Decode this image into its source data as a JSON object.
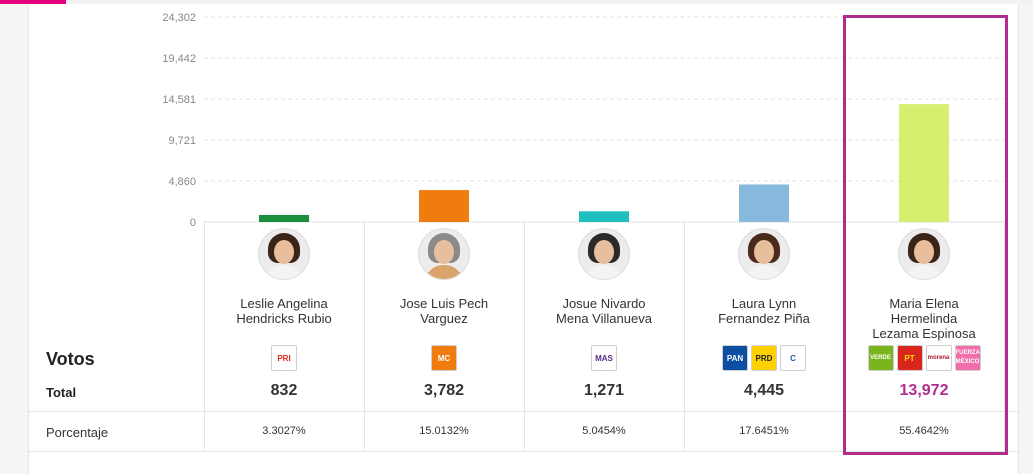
{
  "chart_data": {
    "type": "bar",
    "categories": [
      "Leslie Angelina Hendricks Rubio",
      "Jose Luis Pech Varguez",
      "Josue Nivardo Mena Villanueva",
      "Laura Lynn Fernandez Piña",
      "Maria Elena Hermelinda Lezama Espinosa"
    ],
    "values": [
      832,
      3782,
      1271,
      4445,
      13972
    ],
    "ylim": [
      0,
      24302
    ],
    "yticks": [
      0,
      4860,
      9721,
      14581,
      19442,
      24302
    ],
    "ytick_labels": [
      "0",
      "4,860",
      "9,721",
      "14,581",
      "19,442",
      "24,302"
    ],
    "grid": true,
    "highlighted_index": 4,
    "colors": [
      "#1a8f3c",
      "#f07b0e",
      "#1fbfbf",
      "#86b9dc",
      "#d6ef6e"
    ]
  },
  "table": {
    "title": "Votos",
    "total_label": "Total",
    "percentage_label": "Porcentaje",
    "winner_total_color": "#b02d8e",
    "candidates": [
      {
        "name_lines": [
          "Leslie Angelina",
          "Hendricks Rubio"
        ],
        "total": "832",
        "percentage": "3.3027%",
        "avatar": {
          "hair": "#3b2418",
          "clothes": "#f4f4f4"
        },
        "parties": [
          {
            "icon": "pri-logo",
            "label": "PRI",
            "bg": "#ffffff",
            "fg": "#e0251b"
          }
        ]
      },
      {
        "name_lines": [
          "Jose Luis Pech",
          "Varguez"
        ],
        "total": "3,782",
        "percentage": "15.0132%",
        "avatar": {
          "hair": "#8a8a8a",
          "clothes": "#d9a56a"
        },
        "parties": [
          {
            "icon": "mc-logo",
            "label": "MC",
            "bg": "#f07b0e",
            "fg": "#ffffff"
          }
        ]
      },
      {
        "name_lines": [
          "Josue Nivardo",
          "Mena Villanueva"
        ],
        "total": "1,271",
        "percentage": "5.0454%",
        "avatar": {
          "hair": "#2a2a2a",
          "clothes": "#f4f4f4"
        },
        "parties": [
          {
            "icon": "mas-logo",
            "label": "MAS",
            "bg": "#ffffff",
            "fg": "#5a2d82"
          }
        ]
      },
      {
        "name_lines": [
          "Laura Lynn",
          "Fernandez Piña"
        ],
        "total": "4,445",
        "percentage": "17.6451%",
        "avatar": {
          "hair": "#4a2a1a",
          "clothes": "#f4f4f4"
        },
        "parties": [
          {
            "icon": "pan-logo",
            "label": "PAN",
            "bg": "#0b4ea2",
            "fg": "#ffffff"
          },
          {
            "icon": "prd-logo",
            "label": "PRD",
            "bg": "#ffd100",
            "fg": "#222222"
          },
          {
            "icon": "confianza-logo",
            "label": "C",
            "bg": "#ffffff",
            "fg": "#1a5aa8"
          }
        ]
      },
      {
        "name_lines": [
          "Maria Elena",
          "Hermelinda",
          "Lezama Espinosa"
        ],
        "total": "13,972",
        "percentage": "55.4642%",
        "avatar": {
          "hair": "#3b2418",
          "clothes": "#f4f4f4"
        },
        "parties": [
          {
            "icon": "verde-logo",
            "label": "VERDE",
            "bg": "#7ab51d",
            "fg": "#ffffff"
          },
          {
            "icon": "pt-logo",
            "label": "PT",
            "bg": "#d9261c",
            "fg": "#ffe100"
          },
          {
            "icon": "morena-logo",
            "label": "morena",
            "bg": "#ffffff",
            "fg": "#a6192e"
          },
          {
            "icon": "fuerza-mexico-logo",
            "label": "FUERZA MÉXICO",
            "bg": "#f06eaa",
            "fg": "#ffffff"
          }
        ]
      }
    ]
  }
}
